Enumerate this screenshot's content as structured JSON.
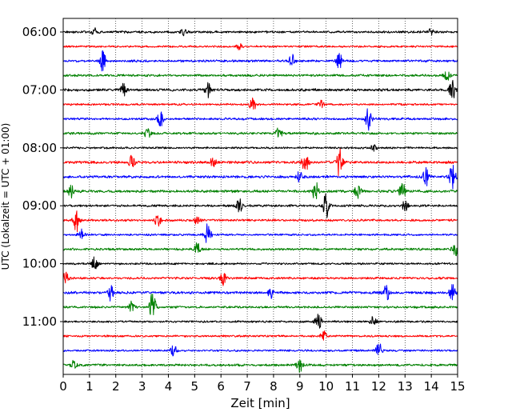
{
  "chart_data": {
    "type": "line",
    "title": "",
    "xlabel": "Zeit  [min]",
    "ylabel": "UTC (Lokalzeit = UTC + 01:00)",
    "xlim": [
      0,
      15
    ],
    "x_ticks": [
      "0",
      "1",
      "2",
      "3",
      "4",
      "5",
      "6",
      "7",
      "8",
      "9",
      "10",
      "11",
      "12",
      "13",
      "14",
      "15"
    ],
    "y_ticks": [
      "06:00",
      "07:00",
      "08:00",
      "09:00",
      "10:00",
      "11:00"
    ],
    "grid": "vertical dotted",
    "trace_interval_min": 15,
    "start_time": "06:00",
    "color_cycle": [
      "#000000",
      "#ff0000",
      "#0000ff",
      "#008000"
    ],
    "series": [
      {
        "row_start": "06:00",
        "color": "#000000",
        "noise": 0.7,
        "events": [
          [
            1.2,
            1.2
          ],
          [
            4.6,
            1.0
          ],
          [
            14.0,
            1.1
          ]
        ]
      },
      {
        "row_start": "06:15",
        "color": "#ff0000",
        "noise": 0.6,
        "events": [
          [
            6.7,
            0.9
          ]
        ]
      },
      {
        "row_start": "06:30",
        "color": "#0000ff",
        "noise": 0.7,
        "events": [
          [
            1.5,
            2.8
          ],
          [
            8.7,
            1.6
          ],
          [
            10.5,
            2.2
          ]
        ]
      },
      {
        "row_start": "06:45",
        "color": "#008000",
        "noise": 0.7,
        "events": [
          [
            14.6,
            1.2
          ]
        ]
      },
      {
        "row_start": "07:00",
        "color": "#000000",
        "noise": 0.8,
        "events": [
          [
            2.3,
            1.6
          ],
          [
            5.5,
            2.0
          ],
          [
            14.8,
            2.6
          ]
        ]
      },
      {
        "row_start": "07:15",
        "color": "#ff0000",
        "noise": 0.6,
        "events": [
          [
            7.2,
            2.2
          ],
          [
            9.8,
            1.0
          ]
        ]
      },
      {
        "row_start": "07:30",
        "color": "#0000ff",
        "noise": 0.7,
        "events": [
          [
            3.7,
            2.0
          ],
          [
            11.6,
            3.2
          ]
        ]
      },
      {
        "row_start": "07:45",
        "color": "#008000",
        "noise": 0.7,
        "events": [
          [
            3.2,
            1.8
          ],
          [
            8.2,
            1.4
          ]
        ]
      },
      {
        "row_start": "08:00",
        "color": "#000000",
        "noise": 0.6,
        "events": [
          [
            11.8,
            1.0
          ]
        ]
      },
      {
        "row_start": "08:15",
        "color": "#ff0000",
        "noise": 0.8,
        "events": [
          [
            2.6,
            2.0
          ],
          [
            9.2,
            3.5
          ],
          [
            10.5,
            3.8
          ],
          [
            5.7,
            1.2
          ]
        ]
      },
      {
        "row_start": "08:30",
        "color": "#0000ff",
        "noise": 0.8,
        "events": [
          [
            9.0,
            1.6
          ],
          [
            13.8,
            2.4
          ],
          [
            14.8,
            3.2
          ]
        ]
      },
      {
        "row_start": "08:45",
        "color": "#008000",
        "noise": 0.8,
        "events": [
          [
            0.3,
            1.6
          ],
          [
            9.6,
            2.6
          ],
          [
            11.2,
            1.8
          ],
          [
            12.9,
            2.2
          ]
        ]
      },
      {
        "row_start": "09:00",
        "color": "#000000",
        "noise": 0.7,
        "events": [
          [
            6.7,
            1.8
          ],
          [
            10.0,
            3.4
          ],
          [
            13.0,
            1.3
          ]
        ]
      },
      {
        "row_start": "09:15",
        "color": "#ff0000",
        "noise": 0.7,
        "events": [
          [
            0.5,
            3.2
          ],
          [
            3.6,
            1.8
          ],
          [
            5.1,
            1.2
          ]
        ]
      },
      {
        "row_start": "09:30",
        "color": "#0000ff",
        "noise": 0.6,
        "events": [
          [
            5.5,
            3.2
          ],
          [
            0.7,
            1.4
          ]
        ]
      },
      {
        "row_start": "09:45",
        "color": "#008000",
        "noise": 0.7,
        "events": [
          [
            5.1,
            1.8
          ],
          [
            14.9,
            1.8
          ]
        ]
      },
      {
        "row_start": "10:00",
        "color": "#000000",
        "noise": 0.6,
        "events": [
          [
            1.2,
            1.8
          ]
        ]
      },
      {
        "row_start": "10:15",
        "color": "#ff0000",
        "noise": 0.7,
        "events": [
          [
            0.1,
            1.6
          ],
          [
            6.1,
            2.0
          ]
        ]
      },
      {
        "row_start": "10:30",
        "color": "#0000ff",
        "noise": 0.8,
        "events": [
          [
            1.8,
            2.0
          ],
          [
            7.9,
            1.8
          ],
          [
            12.3,
            2.2
          ],
          [
            14.8,
            2.0
          ]
        ]
      },
      {
        "row_start": "10:45",
        "color": "#008000",
        "noise": 0.7,
        "events": [
          [
            3.4,
            4.2
          ],
          [
            2.6,
            1.4
          ]
        ]
      },
      {
        "row_start": "11:00",
        "color": "#000000",
        "noise": 0.6,
        "events": [
          [
            9.7,
            2.4
          ],
          [
            11.8,
            1.4
          ]
        ]
      },
      {
        "row_start": "11:15",
        "color": "#ff0000",
        "noise": 0.6,
        "events": [
          [
            9.9,
            1.2
          ]
        ]
      },
      {
        "row_start": "11:30",
        "color": "#0000ff",
        "noise": 0.6,
        "events": [
          [
            4.2,
            1.4
          ],
          [
            12.0,
            2.2
          ]
        ]
      },
      {
        "row_start": "11:45",
        "color": "#008000",
        "noise": 0.7,
        "events": [
          [
            9.0,
            1.8
          ],
          [
            0.4,
            1.2
          ]
        ]
      }
    ]
  }
}
